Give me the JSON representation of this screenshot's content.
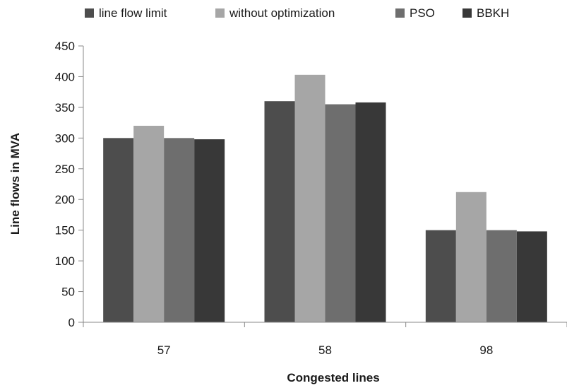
{
  "chart_data": {
    "type": "bar",
    "categories": [
      "57",
      "58",
      "98"
    ],
    "series": [
      {
        "name": "line flow limit",
        "values": [
          300,
          360,
          150
        ],
        "color": "#4d4d4d"
      },
      {
        "name": "without optimization",
        "values": [
          320,
          403,
          212
        ],
        "color": "#a6a6a6"
      },
      {
        "name": "PSO",
        "values": [
          300,
          355,
          150
        ],
        "color": "#6e6e6e"
      },
      {
        "name": "BBKH",
        "values": [
          298,
          358,
          148
        ],
        "color": "#383838"
      }
    ],
    "title": "",
    "xlabel": "Congested lines",
    "ylabel": "Line flows in MVA",
    "ylim": [
      0,
      450
    ],
    "yticks": [
      "0",
      "50",
      "100",
      "150",
      "200",
      "250",
      "300",
      "350",
      "400",
      "450"
    ],
    "grid": false,
    "legend_position": "top"
  }
}
